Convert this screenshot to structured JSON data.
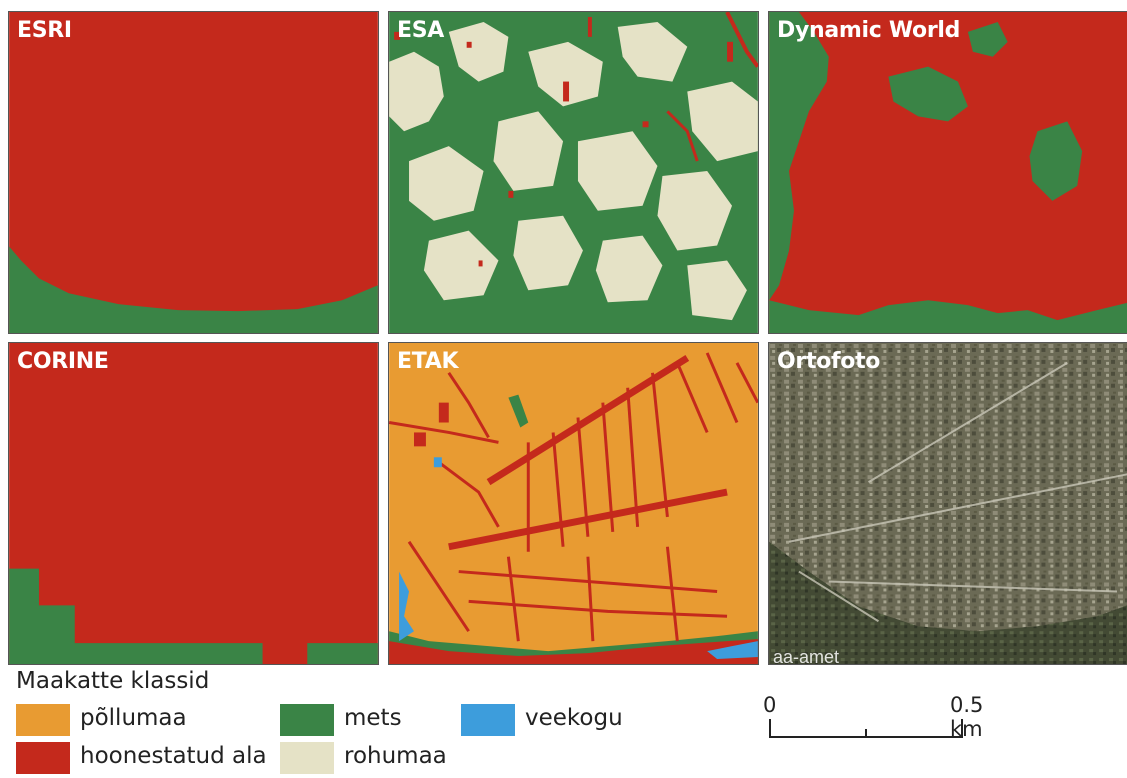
{
  "panels": {
    "esri": "ESRI",
    "esa": "ESA",
    "dynamic_world": "Dynamic World",
    "corine": "CORINE",
    "etak": "ETAK",
    "ortofoto": "Ortofoto"
  },
  "ortofoto_watermark": "aa-amet",
  "legend": {
    "title": "Maakatte klassid",
    "items": [
      {
        "label": "põllumaa",
        "color": "#e89b32"
      },
      {
        "label": "mets",
        "color": "#3a8446"
      },
      {
        "label": "veekogu",
        "color": "#3d9ddc"
      },
      {
        "label": "hoonestatud ala",
        "color": "#c4291c"
      },
      {
        "label": "rohumaa",
        "color": "#e5e2c6"
      }
    ]
  },
  "scalebar": {
    "start": "0",
    "end": "0.5 km"
  }
}
